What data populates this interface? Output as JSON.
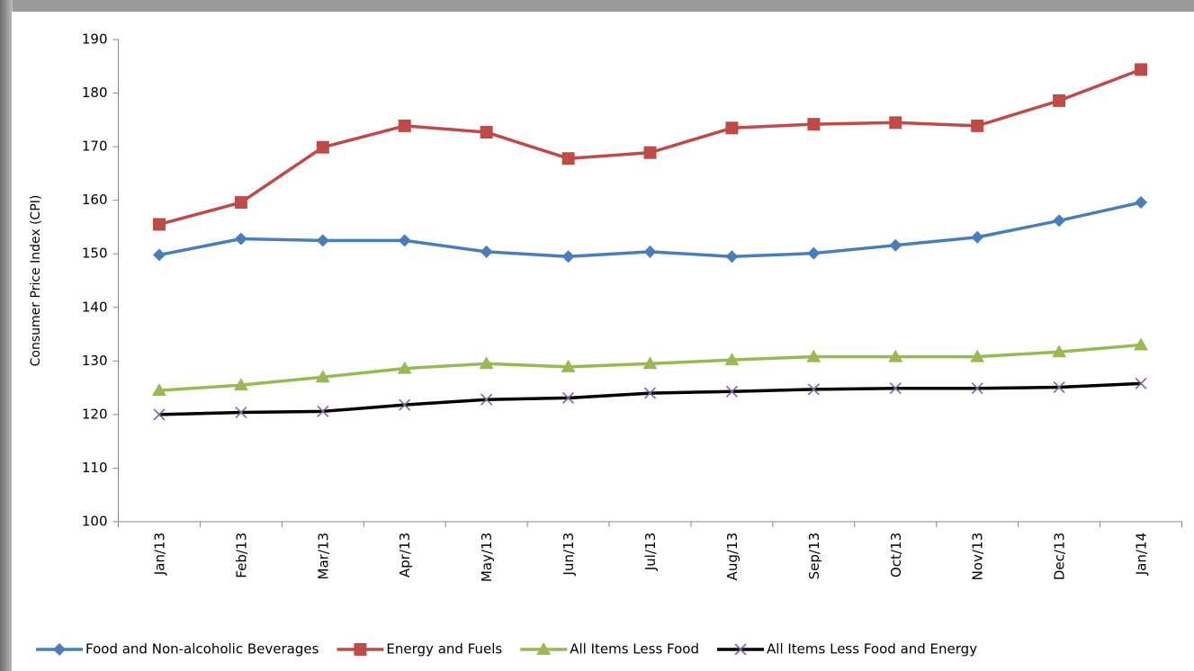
{
  "chart_data": {
    "type": "line",
    "y_label": "Consumer Price Index (CPI)",
    "categories": [
      "Jan/13",
      "Feb/13",
      "Mar/13",
      "Apr/13",
      "May/13",
      "Jun/13",
      "Jul/13",
      "Aug/13",
      "Sep/13",
      "Oct/13",
      "Nov/13",
      "Dec/13",
      "Jan/14"
    ],
    "ylim": [
      100,
      190
    ],
    "yticks": [
      100,
      110,
      120,
      130,
      140,
      150,
      160,
      170,
      180,
      190
    ],
    "grid": false,
    "legend": "bottom",
    "series": [
      {
        "name": "Food and Non-alcoholic Beverages",
        "color": "#4a7ebb",
        "marker": "diamond",
        "values": [
          149.8,
          152.8,
          152.5,
          152.5,
          150.4,
          149.5,
          150.4,
          149.5,
          150.1,
          151.6,
          153.1,
          156.2,
          159.6
        ]
      },
      {
        "name": "Energy and Fuels",
        "color": "#be4b48",
        "marker": "square",
        "values": [
          155.5,
          159.6,
          169.9,
          173.9,
          172.7,
          167.8,
          168.9,
          173.5,
          174.2,
          174.5,
          173.9,
          178.6,
          184.4
        ]
      },
      {
        "name": "All Items Less Food",
        "color": "#98b954",
        "marker": "triangle",
        "values": [
          124.5,
          125.5,
          127.0,
          128.6,
          129.5,
          128.9,
          129.5,
          130.2,
          130.8,
          130.8,
          130.8,
          131.7,
          133.0
        ]
      },
      {
        "name": "All Items Less Food and Energy",
        "color": "#000000",
        "marker": "x",
        "values": [
          120.0,
          120.4,
          120.6,
          121.8,
          122.8,
          123.1,
          124.0,
          124.3,
          124.7,
          124.9,
          124.9,
          125.1,
          125.8
        ]
      }
    ]
  }
}
